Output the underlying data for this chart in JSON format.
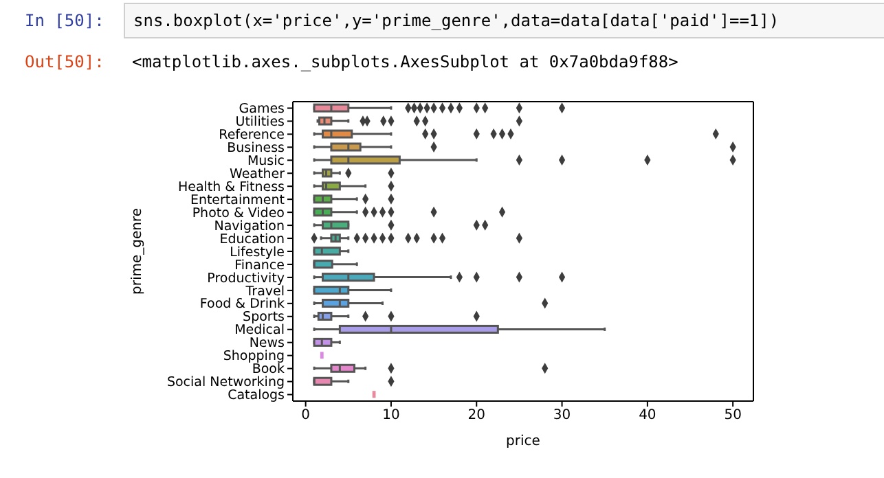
{
  "chart_data": {
    "type": "box",
    "orientation": "horizontal",
    "xlabel": "price",
    "ylabel": "prime_genre",
    "annotations": [
      "In  [50]:",
      "sns.boxplot(x='price',y='prime_genre',data=data[data['paid']==1])",
      "Out[50]:",
      "<matplotlib.axes._subplots.AxesSubplot at 0x7a0bda9f88>"
    ],
    "categories": [
      "Games",
      "Utilities",
      "Reference",
      "Business",
      "Music",
      "Weather",
      "Health & Fitness",
      "Entertainment",
      "Photo & Video",
      "Navigation",
      "Education",
      "Lifestyle",
      "Finance",
      "Productivity",
      "Travel",
      "Food & Drink",
      "Sports",
      "Medical",
      "News",
      "Shopping",
      "Book",
      "Social Networking",
      "Catalogs"
    ],
    "colors": [
      "#e8899a",
      "#e88c76",
      "#e08a45",
      "#c99a4c",
      "#bb9f45",
      "#a3a543",
      "#8aaa43",
      "#5aae48",
      "#48ae55",
      "#47ae7c",
      "#48ad93",
      "#47aca4",
      "#48abb0",
      "#4aaabc",
      "#4ea7cc",
      "#5aa3e0",
      "#85a0e8",
      "#a99ce8",
      "#c491e8",
      "#d98ae0",
      "#e585cb",
      "#e887b0",
      "#e8899c"
    ],
    "boxes": [
      {
        "low": 1,
        "q1": 1,
        "median": 3,
        "q3": 5,
        "high": 10,
        "outliers": [
          12,
          12.7,
          13.4,
          14.2,
          15,
          16,
          17,
          18,
          20,
          21,
          25,
          30
        ]
      },
      {
        "low": 1.4,
        "q1": 1.6,
        "median": 2.2,
        "q3": 3,
        "high": 5,
        "outliers": [
          6.7,
          7.2,
          9.1,
          10,
          13,
          14,
          25
        ]
      },
      {
        "low": 1,
        "q1": 2,
        "median": 3,
        "q3": 5.4,
        "high": 10,
        "outliers": [
          14,
          15,
          20,
          22,
          23,
          24,
          48
        ]
      },
      {
        "low": 1,
        "q1": 3,
        "median": 5,
        "q3": 6.4,
        "high": 10,
        "outliers": [
          15,
          50
        ]
      },
      {
        "low": 1,
        "q1": 3,
        "median": 5,
        "q3": 11,
        "high": 20,
        "outliers": [
          25,
          30,
          40,
          50
        ]
      },
      {
        "low": 1,
        "q1": 2,
        "median": 2.4,
        "q3": 3,
        "high": 4,
        "outliers": [
          5,
          10
        ]
      },
      {
        "low": 1,
        "q1": 2,
        "median": 2.4,
        "q3": 4,
        "high": 7,
        "outliers": [
          10
        ]
      },
      {
        "low": 1,
        "q1": 1,
        "median": 2,
        "q3": 3,
        "high": 6,
        "outliers": [
          7,
          10
        ]
      },
      {
        "low": 1,
        "q1": 1,
        "median": 2,
        "q3": 3,
        "high": 6,
        "outliers": [
          7,
          8,
          9,
          10,
          15,
          23
        ]
      },
      {
        "low": 1,
        "q1": 2,
        "median": 3,
        "q3": 5,
        "high": 5,
        "outliers": [
          10,
          20,
          21
        ]
      },
      {
        "low": 1.8,
        "q1": 3,
        "median": 3.5,
        "q3": 4,
        "high": 5,
        "outliers": [
          1,
          6,
          7,
          8,
          9,
          10,
          12,
          13,
          15,
          16,
          25
        ]
      },
      {
        "low": 1,
        "q1": 1,
        "median": 1.9,
        "q3": 4,
        "high": 5
      },
      {
        "low": 1,
        "q1": 1,
        "median": 1,
        "q3": 3.1,
        "high": 6
      },
      {
        "low": 1,
        "q1": 2,
        "median": 5,
        "q3": 8,
        "high": 17,
        "outliers": [
          18,
          20,
          25,
          30
        ]
      },
      {
        "low": 1,
        "q1": 1,
        "median": 4,
        "q3": 5,
        "high": 10
      },
      {
        "low": 1,
        "q1": 2,
        "median": 4,
        "q3": 5,
        "high": 9,
        "outliers": [
          28
        ]
      },
      {
        "low": 1,
        "q1": 1.5,
        "median": 2,
        "q3": 3,
        "high": 5,
        "outliers": [
          7,
          10,
          20
        ]
      },
      {
        "low": 1,
        "q1": 4,
        "median": 10,
        "q3": 22.5,
        "high": 35
      },
      {
        "low": 1,
        "q1": 1,
        "median": 1.9,
        "q3": 3,
        "high": 4
      },
      {
        "low": 1.9,
        "q1": 1.9,
        "median": 1.9,
        "q3": 1.9,
        "high": 1.9
      },
      {
        "low": 1,
        "q1": 3,
        "median": 4,
        "q3": 5.7,
        "high": 7,
        "outliers": [
          10,
          28
        ]
      },
      {
        "low": 1,
        "q1": 1,
        "median": 1,
        "q3": 3,
        "high": 5,
        "outliers": [
          10
        ]
      },
      {
        "low": 8,
        "q1": 8,
        "median": 8,
        "q3": 8,
        "high": 8
      }
    ],
    "xlim": [
      -1.5,
      52.4
    ],
    "xticks": [
      0,
      10,
      20,
      30,
      40,
      50
    ]
  }
}
